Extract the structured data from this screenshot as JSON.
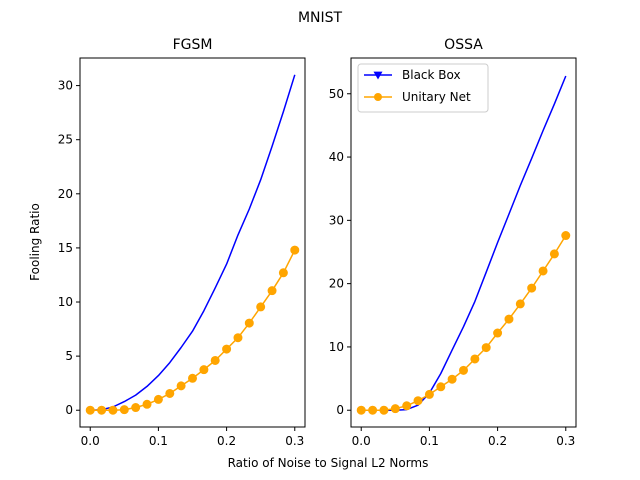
{
  "figure": {
    "title": "MNIST",
    "xlabel": "Ratio of Noise to Signal L2 Norms",
    "ylabel": "Fooling Ratio"
  },
  "colors": {
    "black_box": "#0000ff",
    "unitary_net": "#ffa500"
  },
  "chart_data": [
    {
      "type": "line",
      "title": "FGSM",
      "xlabel": "Ratio of Noise to Signal L2 Norms",
      "ylabel": "Fooling Ratio",
      "xlim": [
        -0.015,
        0.315
      ],
      "ylim": [
        -1.55,
        32.55
      ],
      "xticks": [
        0.0,
        0.1,
        0.2,
        0.3
      ],
      "xtick_labels": [
        "0.0",
        "0.1",
        "0.2",
        "0.3"
      ],
      "yticks": [
        0,
        5,
        10,
        15,
        20,
        25,
        30
      ],
      "ytick_labels": [
        "0",
        "5",
        "10",
        "15",
        "20",
        "25",
        "30"
      ],
      "grid": false,
      "legend": null,
      "series": [
        {
          "key": "black_box",
          "x": [
            0.0,
            0.0167,
            0.0333,
            0.05,
            0.0667,
            0.0833,
            0.1,
            0.1167,
            0.1333,
            0.15,
            0.1667,
            0.1833,
            0.2,
            0.2167,
            0.2333,
            0.25,
            0.2667,
            0.2833,
            0.3
          ],
          "y": [
            0.0,
            0.05,
            0.3,
            0.8,
            1.4,
            2.2,
            3.2,
            4.4,
            5.8,
            7.3,
            9.2,
            11.3,
            13.5,
            16.2,
            18.6,
            21.3,
            24.4,
            27.6,
            31.0
          ]
        },
        {
          "key": "unitary_net",
          "x": [
            0.0,
            0.0167,
            0.0333,
            0.05,
            0.0667,
            0.0833,
            0.1,
            0.1167,
            0.1333,
            0.15,
            0.1667,
            0.1833,
            0.2,
            0.2167,
            0.2333,
            0.25,
            0.2667,
            0.2833,
            0.3
          ],
          "y": [
            0.0,
            0.0,
            0.0,
            0.05,
            0.25,
            0.55,
            1.0,
            1.55,
            2.25,
            2.95,
            3.75,
            4.6,
            5.65,
            6.7,
            8.05,
            9.55,
            11.05,
            12.7,
            14.8
          ]
        }
      ]
    },
    {
      "type": "line",
      "title": "OSSA",
      "xlabel": "Ratio of Noise to Signal L2 Norms",
      "ylabel": "",
      "xlim": [
        -0.015,
        0.315
      ],
      "ylim": [
        -2.65,
        55.65
      ],
      "xticks": [
        0.0,
        0.1,
        0.2,
        0.3
      ],
      "xtick_labels": [
        "0.0",
        "0.1",
        "0.2",
        "0.3"
      ],
      "yticks": [
        0,
        10,
        20,
        30,
        40,
        50
      ],
      "ytick_labels": [
        "0",
        "10",
        "20",
        "30",
        "40",
        "50"
      ],
      "grid": false,
      "legend": {
        "placement": "top-left",
        "entries": [
          {
            "key": "black_box",
            "label": "Black Box",
            "marker": "triangle-down"
          },
          {
            "key": "unitary_net",
            "label": "Unitary Net",
            "marker": "circle"
          }
        ]
      },
      "series": [
        {
          "key": "black_box",
          "x": [
            0.0,
            0.0167,
            0.0333,
            0.05,
            0.0667,
            0.0833,
            0.1,
            0.1167,
            0.1333,
            0.15,
            0.1667,
            0.1833,
            0.2,
            0.2167,
            0.2333,
            0.25,
            0.2667,
            0.2833,
            0.3
          ],
          "y": [
            0.0,
            0.0,
            0.0,
            0.0,
            0.1,
            0.8,
            2.7,
            5.8,
            9.5,
            13.2,
            17.2,
            21.8,
            26.5,
            31.0,
            35.5,
            39.8,
            44.2,
            48.4,
            52.8
          ]
        },
        {
          "key": "unitary_net",
          "x": [
            0.0,
            0.0167,
            0.0333,
            0.05,
            0.0667,
            0.0833,
            0.1,
            0.1167,
            0.1333,
            0.15,
            0.1667,
            0.1833,
            0.2,
            0.2167,
            0.2333,
            0.25,
            0.2667,
            0.2833,
            0.3
          ],
          "y": [
            0.0,
            0.0,
            0.0,
            0.25,
            0.7,
            1.5,
            2.5,
            3.7,
            4.9,
            6.3,
            8.1,
            9.9,
            12.2,
            14.4,
            16.8,
            19.3,
            22.0,
            24.7,
            27.6
          ]
        }
      ]
    }
  ]
}
